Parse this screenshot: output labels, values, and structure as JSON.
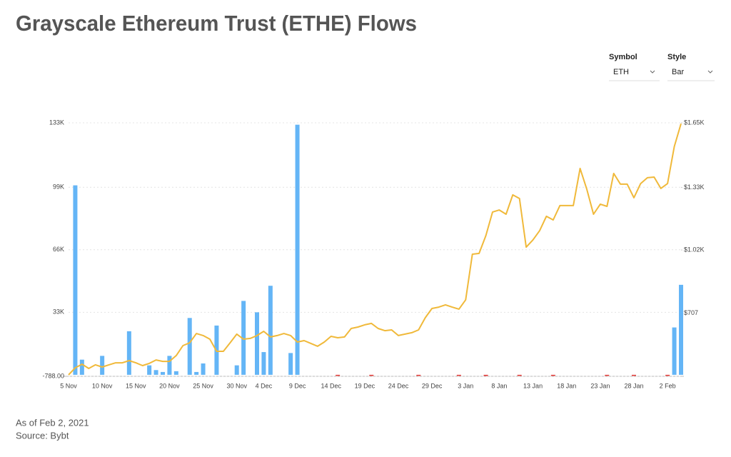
{
  "chart_data": {
    "type": "combo",
    "title": "Grayscale Ethereum Trust (ETHE) Flows",
    "categories": [
      "5 Nov",
      null,
      null,
      null,
      null,
      "10 Nov",
      null,
      null,
      null,
      null,
      "15 Nov",
      null,
      null,
      null,
      null,
      "20 Nov",
      null,
      null,
      null,
      null,
      "25 Nov",
      null,
      null,
      null,
      null,
      "30 Nov",
      null,
      null,
      null,
      "4 Dec",
      null,
      null,
      null,
      null,
      "9 Dec",
      null,
      null,
      null,
      null,
      "14 Dec",
      null,
      null,
      null,
      null,
      "19 Dec",
      null,
      null,
      null,
      null,
      "24 Dec",
      null,
      null,
      null,
      null,
      "29 Dec",
      null,
      null,
      null,
      null,
      "3 Jan",
      null,
      null,
      null,
      null,
      "8 Jan",
      null,
      null,
      null,
      null,
      "13 Jan",
      null,
      null,
      null,
      null,
      "18 Jan",
      null,
      null,
      null,
      null,
      "23 Jan",
      null,
      null,
      null,
      null,
      "28 Jan",
      null,
      null,
      null,
      null,
      "2 Feb",
      null,
      null
    ],
    "series": [
      {
        "type": "bar",
        "color": "#64b5f6",
        "negative_color": "#e53935",
        "values": [
          0,
          100000,
          8000,
          0,
          0,
          10000,
          0,
          0,
          0,
          23000,
          0,
          0,
          5000,
          2500,
          1500,
          10000,
          1900,
          0,
          30000,
          1500,
          6000,
          0,
          26000,
          0,
          0,
          5000,
          39000,
          0,
          33000,
          12000,
          47000,
          0,
          0,
          11500,
          132000,
          0,
          0,
          0,
          0,
          0,
          -400,
          0,
          0,
          0,
          0,
          -300,
          0,
          0,
          0,
          0,
          0,
          0,
          -500,
          0,
          0,
          0,
          0,
          0,
          -400,
          0,
          0,
          0,
          -600,
          0,
          0,
          0,
          0,
          -300,
          0,
          0,
          0,
          0,
          -350,
          0,
          0,
          0,
          0,
          0,
          0,
          0,
          -400,
          0,
          0,
          0,
          -450,
          0,
          0,
          0,
          0,
          -500,
          25000,
          47500
        ]
      },
      {
        "type": "line",
        "color": "#f0b93a",
        "axis": "y2",
        "values": [
          401,
          436,
          454,
          433,
          451,
          440,
          451,
          461,
          461,
          472,
          461,
          447,
          458,
          475,
          468,
          468,
          497,
          546,
          560,
          606,
          596,
          578,
          518,
          518,
          560,
          603,
          578,
          582,
          596,
          617,
          589,
          596,
          606,
          596,
          564,
          571,
          557,
          543,
          564,
          592,
          585,
          589,
          631,
          638,
          649,
          656,
          631,
          620,
          624,
          596,
          603,
          610,
          624,
          684,
          730,
          737,
          748,
          737,
          727,
          773,
          999,
          1003,
          1091,
          1208,
          1218,
          1197,
          1293,
          1275,
          1034,
          1070,
          1116,
          1187,
          1169,
          1240,
          1240,
          1240,
          1424,
          1321,
          1197,
          1247,
          1236,
          1399,
          1346,
          1346,
          1279,
          1349,
          1378,
          1381,
          1325,
          1349,
          1533,
          1646
        ]
      }
    ],
    "ylim": [
      -788,
      133000
    ],
    "yticks": [
      {
        "value": -788,
        "label": "-788.00"
      },
      {
        "value": 33000,
        "label": "33K"
      },
      {
        "value": 66000,
        "label": "66K"
      },
      {
        "value": 99000,
        "label": "99K"
      },
      {
        "value": 133000,
        "label": "133K"
      }
    ],
    "y2lim": [
      394,
      1650
    ],
    "y2ticks": [
      {
        "value": 707,
        "label": "$707"
      },
      {
        "value": 1020,
        "label": "$1.02K"
      },
      {
        "value": 1330,
        "label": "$1.33K"
      },
      {
        "value": 1650,
        "label": "$1.65K"
      }
    ],
    "grid": true
  },
  "controls": [
    {
      "label": "Symbol",
      "value": "ETH"
    },
    {
      "label": "Style",
      "value": "Bar"
    }
  ],
  "footer": [
    "As of Feb 2, 2021",
    "Source: Bybt"
  ]
}
